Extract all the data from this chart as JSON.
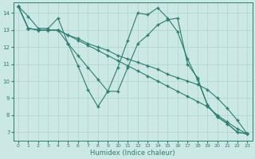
{
  "xlabel": "Humidex (Indice chaleur)",
  "bg_color": "#cce8e4",
  "line_color": "#2e7d70",
  "grid_color": "#b0d8d0",
  "xlim": [
    -0.5,
    23.5
  ],
  "ylim": [
    6.5,
    14.6
  ],
  "xticks": [
    0,
    1,
    2,
    3,
    4,
    5,
    6,
    7,
    8,
    9,
    10,
    11,
    12,
    13,
    14,
    15,
    16,
    17,
    18,
    19,
    20,
    21,
    22,
    23
  ],
  "yticks": [
    7,
    8,
    9,
    10,
    11,
    12,
    13,
    14
  ],
  "lines": [
    [
      14.4,
      13.8,
      13.1,
      13.1,
      13.7,
      12.2,
      10.9,
      9.5,
      8.5,
      9.4,
      10.8,
      12.4,
      14.0,
      13.9,
      14.3,
      13.7,
      12.9,
      11.3,
      10.1,
      8.6,
      7.9,
      7.5,
      7.0,
      6.9
    ],
    [
      14.4,
      13.1,
      13.0,
      13.0,
      13.0,
      12.7,
      12.5,
      12.2,
      12.0,
      11.8,
      11.5,
      11.3,
      11.1,
      10.9,
      10.7,
      10.4,
      10.2,
      10.0,
      9.8,
      9.5,
      9.0,
      8.4,
      7.7,
      6.9
    ],
    [
      14.4,
      13.1,
      13.0,
      13.0,
      13.0,
      12.7,
      12.4,
      12.1,
      11.8,
      11.5,
      11.2,
      10.9,
      10.6,
      10.3,
      10.0,
      9.7,
      9.4,
      9.1,
      8.8,
      8.5,
      8.0,
      7.6,
      7.2,
      6.9
    ],
    [
      14.4,
      13.1,
      13.0,
      13.0,
      13.0,
      12.2,
      11.5,
      10.8,
      10.1,
      9.4,
      9.4,
      10.8,
      12.2,
      12.7,
      13.3,
      13.6,
      13.7,
      11.0,
      10.2,
      8.6,
      7.9,
      7.5,
      7.0,
      6.9
    ]
  ]
}
